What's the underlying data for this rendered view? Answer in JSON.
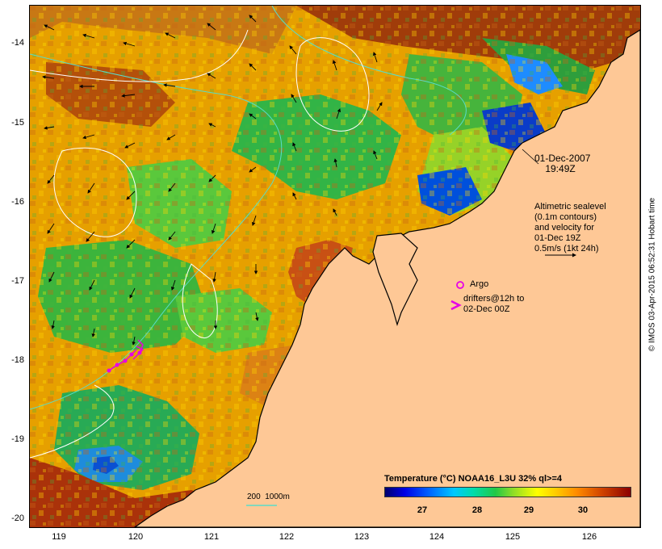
{
  "map": {
    "latitude_ticks": [
      "-14",
      "-15",
      "-16",
      "-17",
      "-18",
      "-19",
      "-20"
    ],
    "longitude_ticks": [
      "119",
      "120",
      "121",
      "122",
      "123",
      "124",
      "125",
      "126"
    ],
    "timestamp": "01-Dec-2007\n    19:49Z",
    "sealevel_note": "Altimetric sealevel\n(0.1m contours)\nand velocity for\n01-Dec 19Z\n0.5m/s (1kt 24h)",
    "argo_label": "Argo",
    "drifters_label": "drifters@12h to\n02-Dec 00Z",
    "depth_legend": "200  1000m"
  },
  "colorbar": {
    "title": "Temperature (°C) NOAA16_L3U 32% ql>=4",
    "ticks": [
      "27",
      "28",
      "29",
      "30"
    ]
  },
  "footer": "© IMOS 03-Apr-2015 06:52:31 Hobart time",
  "colors": {
    "land": "#fec896",
    "sea_warm": "#e6a000",
    "sea_hot": "#b4460a",
    "sea_cool": "#28b446",
    "sea_cold": "#0050dc",
    "marker": "#e600e6",
    "isobath_200": "#5adcc8",
    "sealevel_contour": "#ffffff"
  }
}
